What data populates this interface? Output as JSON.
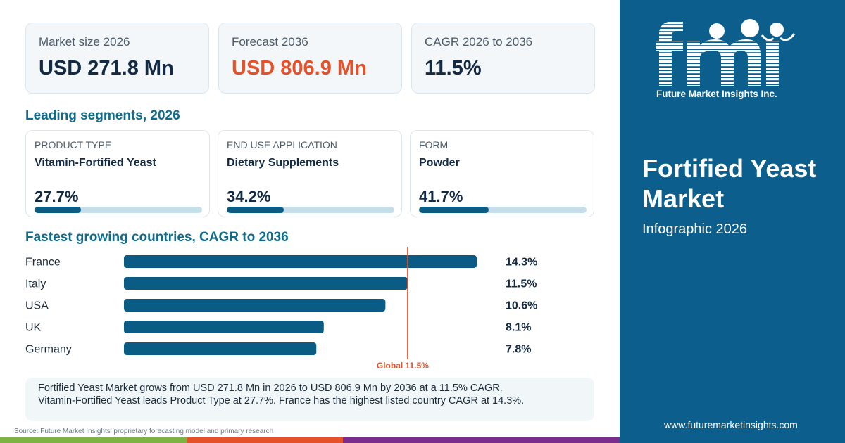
{
  "stats": [
    {
      "label": "Market size 2026",
      "value": "USD 271.8 Mn",
      "accent": false
    },
    {
      "label": "Forecast 2036",
      "value": "USD 806.9 Mn",
      "accent": true
    },
    {
      "label": "CAGR 2026 to 2036",
      "value": "11.5%",
      "accent": false
    }
  ],
  "segments_title": "Leading segments, 2026",
  "segments": [
    {
      "category": "PRODUCT TYPE",
      "name": "Vitamin-Fortified Yeast",
      "share_label": "27.7%",
      "share": 27.7
    },
    {
      "category": "END USE APPLICATION",
      "name": "Dietary Supplements",
      "share_label": "34.2%",
      "share": 34.2
    },
    {
      "category": "FORM",
      "name": "Powder",
      "share_label": "41.7%",
      "share": 41.7
    }
  ],
  "countries_title": "Fastest growing countries, CAGR to 2036",
  "chart_data": {
    "type": "bar",
    "orientation": "horizontal",
    "categories": [
      "France",
      "Italy",
      "USA",
      "UK",
      "Germany"
    ],
    "values": [
      14.3,
      11.5,
      10.6,
      8.1,
      7.8
    ],
    "value_labels": [
      "14.3%",
      "11.5%",
      "10.6%",
      "8.1%",
      "7.8%"
    ],
    "reference_line": {
      "value": 11.5,
      "label": "Global 11.5%"
    },
    "xlim": [
      0,
      14.3
    ],
    "bar_color": "#0b5c85",
    "reference_color": "#d9542f"
  },
  "summary": {
    "line1": "Fortified Yeast Market grows from USD 271.8 Mn in 2026 to USD 806.9 Mn by 2036 at a 11.5% CAGR.",
    "line2": "Vitamin-Fortified Yeast leads Product Type at 27.7%. France has the highest listed country CAGR at 14.3%."
  },
  "source": "Source: Future Market Insights' proprietary forecasting model and primary research",
  "sidebar": {
    "logo_text": "fmi",
    "logo_caption": "Future Market Insights Inc.",
    "title": "Fortified Yeast Market",
    "subtitle": "Infographic 2026",
    "url": "www.futuremarketinsights.com"
  },
  "colors": {
    "sidebar_bg": "#0c5f8d",
    "accent": "#e5522a",
    "heading": "#0e6b8c",
    "stripe_green": "#7cb342",
    "stripe_orange": "#e5522a",
    "stripe_purple": "#7b2d8e"
  }
}
